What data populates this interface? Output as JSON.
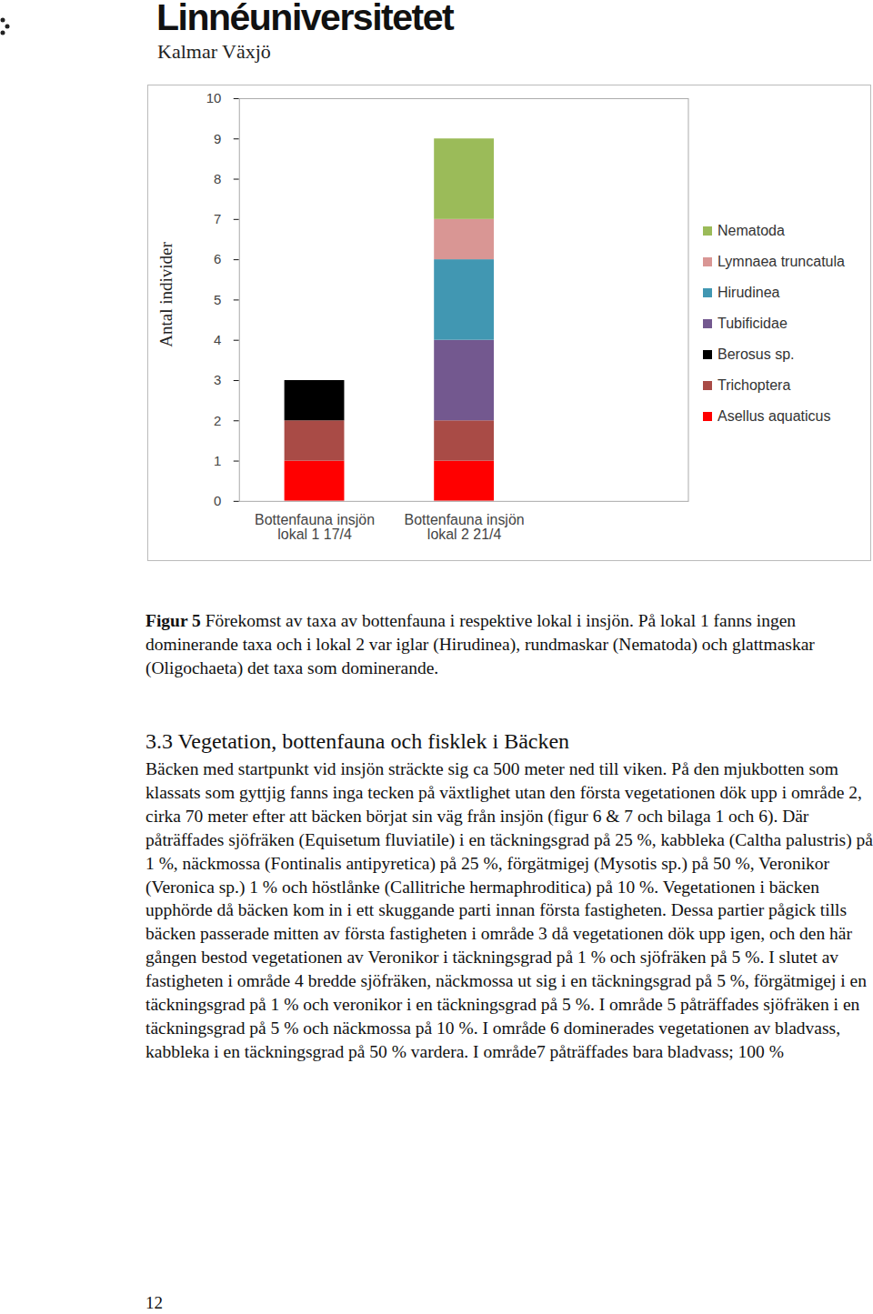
{
  "header": {
    "title": "Linnéuniversitetet",
    "subtitle": "Kalmar Växjö"
  },
  "chart_data": {
    "type": "bar",
    "stacked": true,
    "y_label": "Antal individer",
    "categories": [
      "Bottenfauna insjön\nlokal 1 17/4",
      "Bottenfauna insjön\nlokal 2 21/4",
      null
    ],
    "series": [
      {
        "name": "Asellus aquaticus",
        "color": "#ff0000",
        "values": [
          1,
          1,
          0
        ]
      },
      {
        "name": "Trichoptera",
        "color": "#a94b46",
        "values": [
          1,
          1,
          0
        ]
      },
      {
        "name": "Berosus sp.",
        "color": "#000000",
        "values": [
          1,
          0,
          0
        ]
      },
      {
        "name": "Tubificidae",
        "color": "#73588f",
        "values": [
          0,
          2,
          0
        ]
      },
      {
        "name": "Hirudinea",
        "color": "#4197b2",
        "values": [
          0,
          2,
          0
        ]
      },
      {
        "name": "Lymnaea truncatula",
        "color": "#d99694",
        "values": [
          0,
          1,
          0
        ]
      },
      {
        "name": "Nematoda",
        "color": "#9bbb59",
        "values": [
          0,
          2,
          0
        ]
      }
    ],
    "ylim": [
      0,
      10
    ],
    "yticks": [
      0,
      1,
      2,
      3,
      4,
      5,
      6,
      7,
      8,
      9,
      10
    ],
    "grid": false,
    "legend": "right"
  },
  "caption": {
    "label": "Figur 5",
    "text": " Förekomst av taxa av bottenfauna i respektive lokal i insjön. På lokal 1 fanns ingen dominerande taxa och i lokal 2 var iglar (Hirudinea), rundmaskar (Nematoda) och glattmaskar (Oligochaeta) det taxa som dominerande."
  },
  "section": {
    "heading": "3.3 Vegetation, bottenfauna och fisklek i Bäcken",
    "text": "Bäcken med startpunkt vid insjön sträckte sig ca 500 meter ned till viken. På den mjukbotten som klassats som gyttjig fanns inga tecken på växtlighet utan den första vegetationen dök upp i område 2, cirka 70 meter efter att bäcken börjat sin väg från insjön (figur 6 & 7 och bilaga 1 och 6). Där påträffades sjöfräken (Equisetum fluviatile) i en täckningsgrad på 25 %, kabbleka (Caltha palustris) på 1 %, näckmossa (Fontinalis antipyretica) på 25 %, förgätmigej (Mysotis sp.) på 50 %, Veronikor (Veronica sp.) 1 % och höstlånke (Callitriche hermaphroditica) på 10 %. Vegetationen i bäcken upphörde då bäcken kom in i ett skuggande parti innan första fastigheten. Dessa partier pågick tills bäcken passerade mitten av första fastigheten i område 3 då vegetationen dök upp igen, och den här gången bestod vegetationen av Veronikor i täckningsgrad på 1 % och sjöfräken på 5 %. I slutet av fastigheten i område 4 bredde sjöfräken, näckmossa ut sig i en täckningsgrad på 5 %, förgätmigej i en täckningsgrad på 1 % och veronikor i en täckningsgrad på 5 %.  I område 5 påträffades sjöfräken i en täckningsgrad på 5 % och näckmossa på 10 %. I område 6 dominerades vegetationen av bladvass, kabbleka i en täckningsgrad på 50 % vardera. I område7 påträffades bara bladvass; 100 %"
  },
  "page_number": "12"
}
